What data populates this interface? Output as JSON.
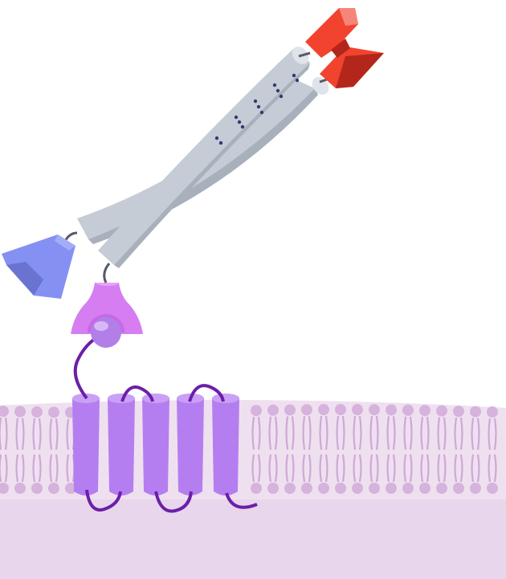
{
  "title": "",
  "labels": [],
  "colors": {
    "background": "#ffffff",
    "membrane_upper": "#efe0f0",
    "membrane_lower": "#e8d6ec",
    "lipid_head": "#d5b3dc",
    "lipid_tail": "#cfa8d6",
    "helix_fill": "#b57ef0",
    "helix_top": "#c9a0f5",
    "loop": "#6b1fa8",
    "cap_fill": "#d67df2",
    "cap_shadow": "#b663d8",
    "bead_fill": "#b27ee8",
    "bead_highlight": "#d7b8f6",
    "rod_fill": "#c5ccd6",
    "rod_shadow": "#a8b0bb",
    "rod_dots": "#343a70",
    "clamp_red": "#f2432f",
    "clamp_red_dark": "#b3261b",
    "clamp_red_light": "#f6857a",
    "blue_block": "#8491f3",
    "blue_block_dark": "#6a74d0",
    "connector": "#555a68"
  },
  "components": [
    {
      "id": "cell-membrane",
      "kind": "lipid-bilayer"
    },
    {
      "id": "transmembrane-receptor",
      "kind": "seven-helix-protein",
      "helices": 5
    },
    {
      "id": "linker-cap",
      "kind": "adapter"
    },
    {
      "id": "crossed-rods",
      "kind": "coiled-pair"
    },
    {
      "id": "red-clamp",
      "kind": "terminal-block"
    },
    {
      "id": "blue-block",
      "kind": "terminal-block"
    }
  ]
}
